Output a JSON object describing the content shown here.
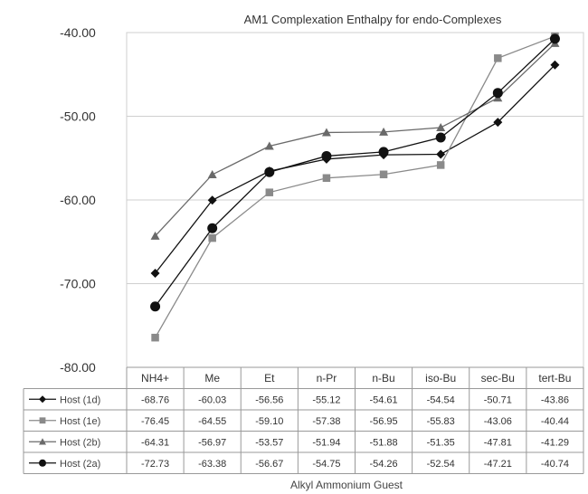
{
  "chart_data": {
    "type": "line",
    "title": "AM1 Complexation Enthalpy for endo-Complexes",
    "xlabel": "Alkyl Ammonium Guest",
    "ylabel": "",
    "ylim": [
      -80,
      -40
    ],
    "yticks": [
      "-40.00",
      "-50.00",
      "-60.00",
      "-70.00",
      "-80.00"
    ],
    "categories": [
      "NH4+",
      "Me",
      "Et",
      "n-Pr",
      "n-Bu",
      "iso-Bu",
      "sec-Bu",
      "tert-Bu"
    ],
    "grid": true,
    "legend": "data-table",
    "series": [
      {
        "name": "Host (1d)",
        "marker": "diamond",
        "color": "#111111",
        "values": [
          -68.76,
          -60.03,
          -56.56,
          -55.12,
          -54.61,
          -54.54,
          -50.71,
          -43.86
        ],
        "labels": [
          "-68.76",
          "-60.03",
          "-56.56",
          "-55.12",
          "-54.61",
          "-54.54",
          "-50.71",
          "-43.86"
        ]
      },
      {
        "name": "Host (1e)",
        "marker": "square",
        "color": "#8a8a8a",
        "values": [
          -76.45,
          -64.55,
          -59.1,
          -57.38,
          -56.95,
          -55.83,
          -43.06,
          -40.44
        ],
        "labels": [
          "-76.45",
          "-64.55",
          "-59.10",
          "-57.38",
          "-56.95",
          "-55.83",
          "-43.06",
          "-40.44"
        ]
      },
      {
        "name": "Host (2b)",
        "marker": "triangle",
        "color": "#6a6a6a",
        "values": [
          -64.31,
          -56.97,
          -53.57,
          -51.94,
          -51.88,
          -51.35,
          -47.81,
          -41.29
        ],
        "labels": [
          "-64.31",
          "-56.97",
          "-53.57",
          "-51.94",
          "-51.88",
          "-51.35",
          "-47.81",
          "-41.29"
        ]
      },
      {
        "name": "Host (2a)",
        "marker": "circle",
        "color": "#111111",
        "values": [
          -72.73,
          -63.38,
          -56.67,
          -54.75,
          -54.26,
          -52.54,
          -47.21,
          -40.74
        ],
        "labels": [
          "-72.73",
          "-63.38",
          "-56.67",
          "-54.75",
          "-54.26",
          "-52.54",
          "-47.21",
          "-40.74"
        ]
      }
    ]
  }
}
